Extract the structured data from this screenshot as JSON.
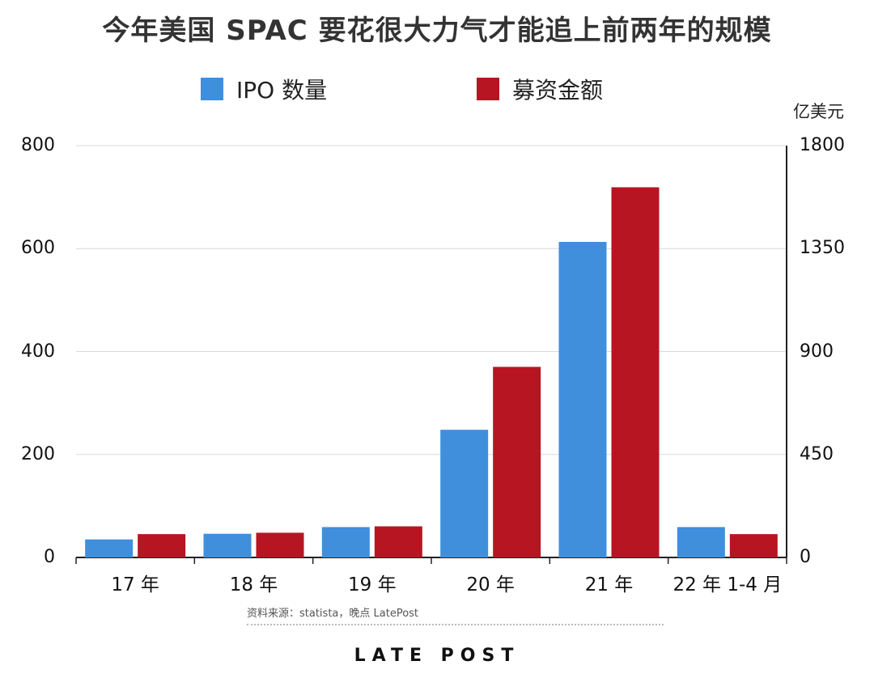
{
  "title": "今年美国 SPAC 要花很大力气才能追上前两年的规模",
  "right_axis_unit": "亿美元",
  "source": "资料来源：statista，晚点 LatePost",
  "brand": "LATE POST",
  "colors": {
    "ipo": "#3f8fdc",
    "amount": "#b71522"
  },
  "chart_data": {
    "type": "bar",
    "categories": [
      "17 年",
      "18 年",
      "19 年",
      "20 年",
      "21 年",
      "22 年 1-4 月"
    ],
    "series": [
      {
        "name": "IPO 数量",
        "axis": "left",
        "values": [
          35,
          46,
          59,
          248,
          613,
          59
        ]
      },
      {
        "name": "募资金额",
        "axis": "right",
        "values": [
          102,
          108,
          136,
          833,
          1618,
          102
        ]
      }
    ],
    "y_left": {
      "ticks": [
        "0",
        "200",
        "400",
        "600",
        "800"
      ],
      "ylim": [
        0,
        800
      ]
    },
    "y_right": {
      "ticks": [
        "0",
        "450",
        "900",
        "1350",
        "1800"
      ],
      "ylim": [
        0,
        1800
      ],
      "label": "亿美元"
    },
    "legend_position": "top",
    "grid": true
  }
}
